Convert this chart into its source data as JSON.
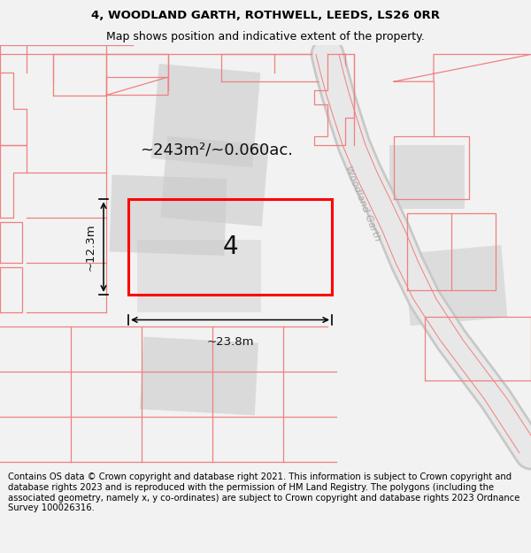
{
  "title_line1": "4, WOODLAND GARTH, ROTHWELL, LEEDS, LS26 0RR",
  "title_line2": "Map shows position and indicative extent of the property.",
  "footer_text": "Contains OS data © Crown copyright and database right 2021. This information is subject to Crown copyright and database rights 2023 and is reproduced with the permission of HM Land Registry. The polygons (including the associated geometry, namely x, y co-ordinates) are subject to Crown copyright and database rights 2023 Ordnance Survey 100026316.",
  "bg_color": "#f2f2f2",
  "map_bg": "#ffffff",
  "highlight_color": "#ff0000",
  "line_color": "#f08080",
  "dim_color": "#000000",
  "road_label": "Woodland Garth",
  "area_label": "~243m²/~0.060ac.",
  "plot_number": "4",
  "width_label": "~23.8m",
  "height_label": "~12.3m",
  "title_fontsize": 9.5,
  "footer_fontsize": 7.2,
  "area_fontsize": 13,
  "num_fontsize": 20,
  "dim_fontsize": 9.5,
  "road_fontsize": 8
}
